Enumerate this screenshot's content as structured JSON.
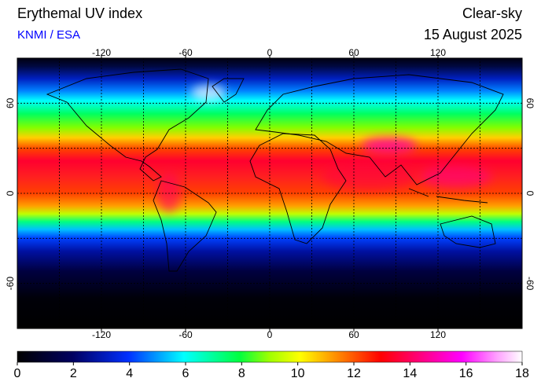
{
  "header": {
    "title": "Erythemal UV index",
    "source": "KNMI / ESA",
    "condition": "Clear-sky",
    "date": "15 August 2025"
  },
  "map": {
    "lon_lim": [
      -180,
      180
    ],
    "lat_lim": [
      -90,
      90
    ],
    "lon_ticks": [
      -120,
      -60,
      0,
      60,
      120
    ],
    "lat_ticks": [
      -60,
      0,
      60
    ],
    "grid": true
  },
  "colorbar": {
    "lim": [
      0,
      18
    ],
    "ticks": [
      0,
      2,
      4,
      6,
      8,
      10,
      12,
      14,
      16,
      18
    ]
  }
}
